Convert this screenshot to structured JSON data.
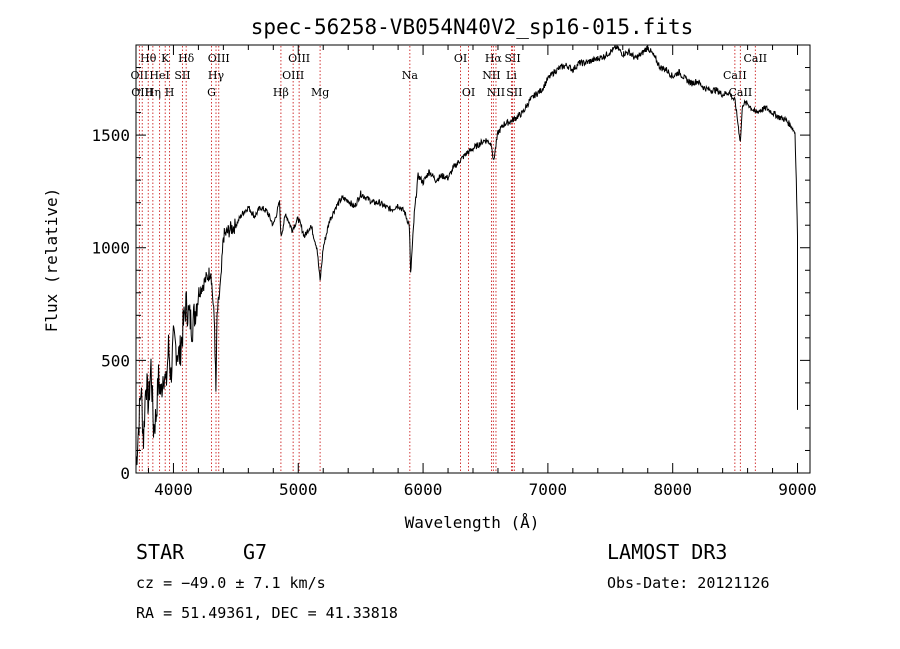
{
  "chart_data": {
    "type": "line",
    "title": "spec-56258-VB054N40V2_sp16-015.fits",
    "xlabel": "Wavelength (Å)",
    "ylabel": "Flux (relative)",
    "xlim": [
      3700,
      9100
    ],
    "ylim": [
      0,
      1900
    ],
    "x_ticks": [
      4000,
      5000,
      6000,
      7000,
      8000,
      9000
    ],
    "x_tick_labels": [
      "4000",
      "5000",
      "6000",
      "7000",
      "8000",
      "9000"
    ],
    "y_ticks": [
      0,
      500,
      1000,
      1500
    ],
    "y_tick_labels": [
      "0",
      "500",
      "1000",
      "1500"
    ],
    "grid": false,
    "series": [
      {
        "name": "spectrum",
        "x": [
          3700,
          3720,
          3740,
          3760,
          3780,
          3800,
          3820,
          3840,
          3860,
          3880,
          3900,
          3920,
          3940,
          3960,
          3980,
          4000,
          4050,
          4100,
          4150,
          4200,
          4250,
          4300,
          4330,
          4340,
          4350,
          4380,
          4400,
          4450,
          4500,
          4550,
          4600,
          4650,
          4700,
          4750,
          4800,
          4850,
          4861,
          4900,
          4950,
          5000,
          5050,
          5100,
          5150,
          5175,
          5200,
          5250,
          5300,
          5350,
          5400,
          5450,
          5500,
          5550,
          5600,
          5650,
          5700,
          5750,
          5800,
          5850,
          5890,
          5900,
          5930,
          5960,
          6000,
          6050,
          6100,
          6150,
          6200,
          6250,
          6300,
          6350,
          6400,
          6450,
          6500,
          6550,
          6563,
          6600,
          6650,
          6700,
          6750,
          6800,
          6850,
          6900,
          6950,
          7000,
          7050,
          7100,
          7150,
          7200,
          7250,
          7300,
          7350,
          7400,
          7450,
          7500,
          7550,
          7600,
          7650,
          7700,
          7750,
          7800,
          7850,
          7900,
          7950,
          8000,
          8050,
          8100,
          8150,
          8200,
          8250,
          8300,
          8350,
          8400,
          8450,
          8500,
          8542,
          8560,
          8600,
          8662,
          8700,
          8750,
          8800,
          8850,
          8900,
          8950,
          8980,
          8990,
          9000
        ],
        "y": [
          30,
          200,
          380,
          150,
          420,
          300,
          480,
          200,
          250,
          420,
          350,
          460,
          380,
          560,
          430,
          580,
          520,
          750,
          650,
          800,
          850,
          900,
          650,
          350,
          700,
          850,
          1050,
          1080,
          1100,
          1150,
          1180,
          1140,
          1180,
          1160,
          1100,
          1200,
          1050,
          1150,
          1080,
          1130,
          1050,
          1100,
          1000,
          850,
          1000,
          1120,
          1180,
          1220,
          1210,
          1180,
          1240,
          1220,
          1200,
          1200,
          1180,
          1170,
          1190,
          1160,
          1100,
          880,
          1150,
          1320,
          1290,
          1340,
          1300,
          1320,
          1310,
          1360,
          1390,
          1420,
          1440,
          1460,
          1480,
          1460,
          1380,
          1510,
          1550,
          1560,
          1580,
          1600,
          1650,
          1680,
          1700,
          1750,
          1780,
          1800,
          1810,
          1790,
          1820,
          1820,
          1830,
          1840,
          1850,
          1870,
          1890,
          1860,
          1870,
          1840,
          1860,
          1890,
          1850,
          1800,
          1790,
          1760,
          1780,
          1750,
          1730,
          1740,
          1710,
          1700,
          1700,
          1680,
          1690,
          1650,
          1470,
          1640,
          1640,
          1600,
          1610,
          1620,
          1600,
          1580,
          1570,
          1540,
          1510,
          1300,
          1050
        ]
      }
    ],
    "line_markers": [
      {
        "label": "Hθ",
        "x": 3798,
        "row": 1
      },
      {
        "label": "OII",
        "x": 3727,
        "row": 2
      },
      {
        "label": "OIII",
        "x": 3750,
        "row": 3
      },
      {
        "label": "HeI",
        "x": 3889,
        "row": 2
      },
      {
        "label": "K",
        "x": 3934,
        "row": 1
      },
      {
        "label": "Hη",
        "x": 3835,
        "row": 3
      },
      {
        "label": "H",
        "x": 3969,
        "row": 3
      },
      {
        "label": "Hδ",
        "x": 4102,
        "row": 1
      },
      {
        "label": "SII",
        "x": 4072,
        "row": 2
      },
      {
        "label": "OIII",
        "x": 4363,
        "row": 1
      },
      {
        "label": "Hγ",
        "x": 4341,
        "row": 2
      },
      {
        "label": "G",
        "x": 4305,
        "row": 3
      },
      {
        "label": "OIII",
        "x": 5007,
        "row": 1
      },
      {
        "label": "OIII",
        "x": 4959,
        "row": 2
      },
      {
        "label": "Hβ",
        "x": 4861,
        "row": 3
      },
      {
        "label": "Mg",
        "x": 5175,
        "row": 3
      },
      {
        "label": "Na",
        "x": 5894,
        "row": 2
      },
      {
        "label": "OI",
        "x": 6300,
        "row": 1
      },
      {
        "label": "OI",
        "x": 6364,
        "row": 3
      },
      {
        "label": "Hα",
        "x": 6563,
        "row": 1
      },
      {
        "label": "SII",
        "x": 6717,
        "row": 1
      },
      {
        "label": "NII",
        "x": 6548,
        "row": 2
      },
      {
        "label": "Li",
        "x": 6708,
        "row": 2
      },
      {
        "label": "NII",
        "x": 6584,
        "row": 3
      },
      {
        "label": "SII",
        "x": 6731,
        "row": 3
      },
      {
        "label": "CaII",
        "x": 8662,
        "row": 1
      },
      {
        "label": "CaII",
        "x": 8498,
        "row": 2
      },
      {
        "label": "CaII",
        "x": 8542,
        "row": 3
      }
    ],
    "marker_color": "#cc2222",
    "line_color": "#000000"
  },
  "info": {
    "object_class": "STAR",
    "subclass": "G7",
    "survey": "LAMOST DR3",
    "cz": "cz = −49.0 ± 7.1 km/s",
    "obs_date": "Obs-Date: 20121126",
    "coords": "RA =  51.49361, DEC =  41.33818"
  }
}
